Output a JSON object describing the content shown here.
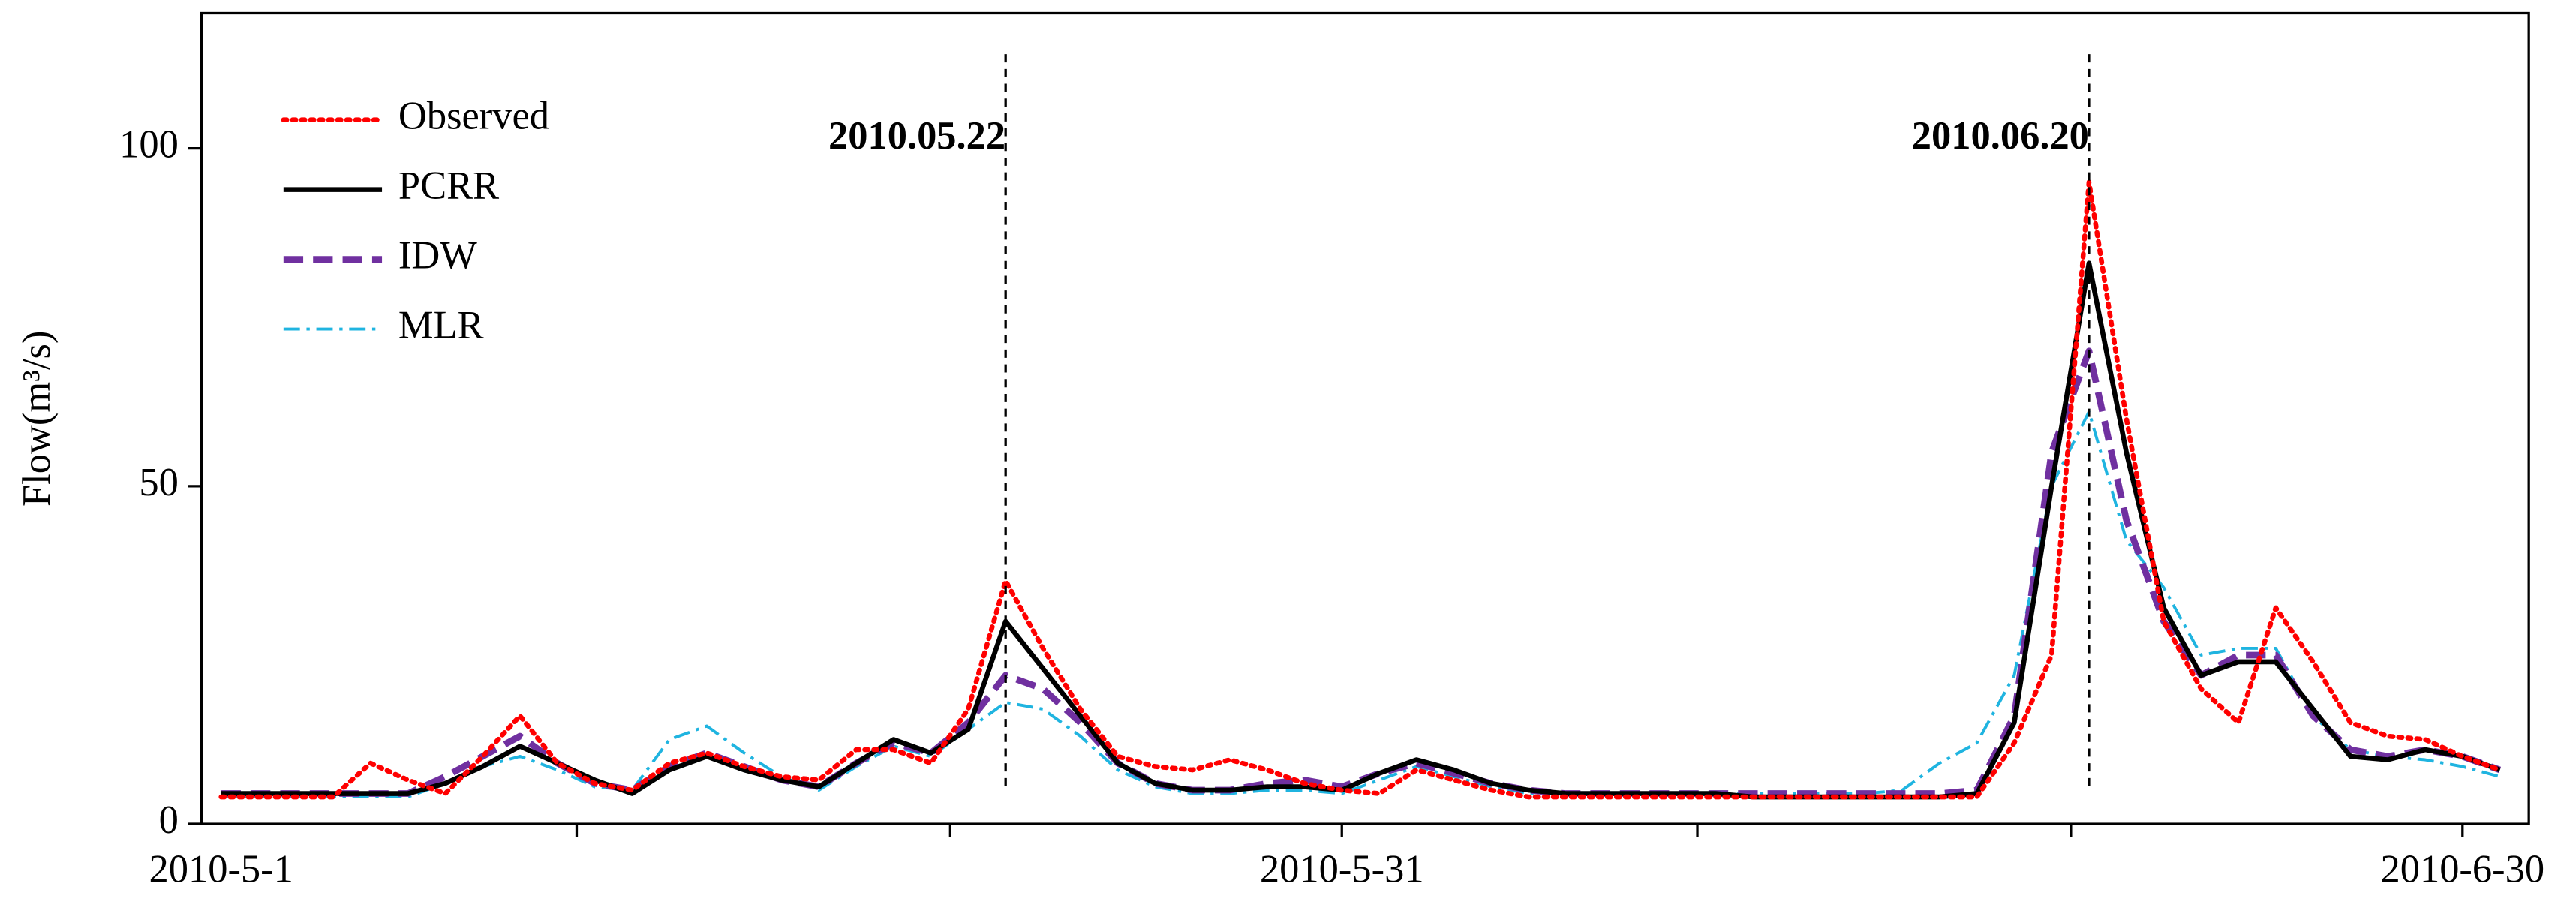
{
  "chart_data": {
    "type": "line",
    "y_label": "Flow(m³/s)",
    "ylim": [
      0,
      120
    ],
    "yticks": [
      0,
      50,
      100
    ],
    "categories": [
      "2010-5-1",
      null,
      null,
      null,
      null,
      null,
      null,
      null,
      null,
      null,
      null,
      null,
      null,
      null,
      null,
      null,
      null,
      null,
      null,
      null,
      null,
      null,
      null,
      null,
      null,
      null,
      null,
      null,
      null,
      null,
      "2010-5-31",
      null,
      null,
      null,
      null,
      null,
      null,
      null,
      null,
      null,
      null,
      null,
      null,
      null,
      null,
      null,
      null,
      null,
      null,
      null,
      null,
      null,
      null,
      null,
      null,
      null,
      null,
      null,
      null,
      null,
      "2010-6-30",
      null
    ],
    "legend": "upper left",
    "annotations": [
      {
        "text": "2010.05.22",
        "x": 21
      },
      {
        "text": "2010.06.20",
        "x": 50
      }
    ],
    "series": [
      {
        "name": "Observed",
        "color": "#ff0000",
        "style": "dotted",
        "values": [
          4,
          4,
          4,
          4,
          9,
          6.5,
          4.5,
          10,
          16,
          9,
          6,
          5,
          9,
          10.5,
          8.5,
          7,
          6.5,
          11,
          11,
          9,
          17,
          36,
          26,
          17,
          10,
          8.5,
          8,
          9.5,
          8,
          6,
          5,
          4.5,
          8,
          6.5,
          5,
          4,
          4,
          4,
          4,
          4,
          4,
          4,
          4,
          4,
          4,
          4,
          4,
          4,
          12,
          25,
          95,
          60,
          30,
          20,
          15,
          32,
          24,
          15,
          13,
          12.5,
          10,
          8
        ]
      },
      {
        "name": "PCRR",
        "color": "#000000",
        "style": "solid",
        "values": [
          4.5,
          4.5,
          4.5,
          4.5,
          4.5,
          4.5,
          6,
          8.5,
          11.5,
          9,
          6.5,
          4.5,
          8,
          10,
          8,
          6.5,
          5.5,
          9,
          12.5,
          10.5,
          14,
          30,
          23,
          16,
          9,
          6,
          5,
          5,
          5.5,
          5.5,
          5,
          7.5,
          9.5,
          8,
          6,
          5,
          4.5,
          4.5,
          4.5,
          4.5,
          4.5,
          4,
          4,
          4,
          4,
          4,
          4,
          4.5,
          15,
          50,
          83,
          55,
          32,
          22,
          24,
          24,
          17,
          10,
          9.5,
          11,
          10,
          8
        ]
      },
      {
        "name": "IDW",
        "color": "#7030a0",
        "style": "dashed",
        "values": [
          4.5,
          4.5,
          4.5,
          4.5,
          4.5,
          4.5,
          7,
          10,
          13,
          9,
          6,
          5,
          8.5,
          10.5,
          8.5,
          6.5,
          5.5,
          9,
          12,
          10.5,
          15,
          22,
          20,
          15,
          9,
          6,
          5,
          5,
          6,
          6.5,
          5.5,
          7.5,
          9,
          7.5,
          6,
          5,
          4.5,
          4.5,
          4.5,
          4.5,
          4.5,
          4.5,
          4.5,
          4.5,
          4.5,
          4.5,
          4.5,
          5,
          16,
          55,
          70,
          45,
          30,
          22,
          25,
          25,
          16,
          11,
          10,
          11,
          10,
          8
        ]
      },
      {
        "name": "MLR",
        "color": "#1fb4e0",
        "style": "dashdot",
        "values": [
          4,
          4,
          4,
          4,
          4,
          4,
          6,
          8.5,
          10,
          8,
          5.5,
          5,
          12.5,
          14.5,
          10.5,
          7,
          5,
          8.5,
          11.5,
          10,
          14,
          18,
          17,
          13,
          8,
          5.5,
          4.5,
          4.5,
          5,
          5,
          4.5,
          6.5,
          8.5,
          7,
          5.5,
          4.5,
          4.5,
          4.5,
          4.5,
          4.5,
          4.5,
          4.5,
          4.5,
          4.5,
          4.5,
          5,
          9,
          12,
          22,
          50,
          61,
          42,
          35,
          25,
          26,
          26,
          16,
          11,
          10,
          9.5,
          8.5,
          7
        ]
      }
    ]
  }
}
